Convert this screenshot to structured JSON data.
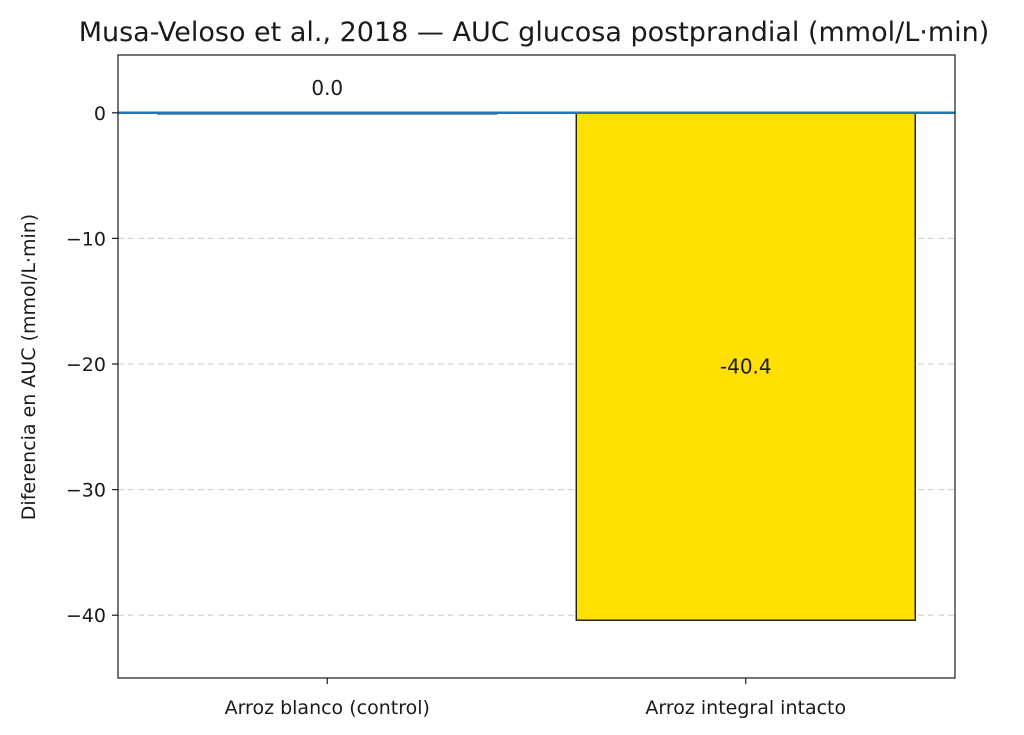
{
  "chart_data": {
    "type": "bar",
    "title": "Musa-Veloso et al., 2018 — AUC glucosa postprandial (mmol/L·min)",
    "xlabel": "",
    "ylabel": "Diferencia en AUC (mmol/L·min)",
    "categories": [
      "Arroz blanco (control)",
      "Arroz integral intacto"
    ],
    "values": [
      0.0,
      -40.4
    ],
    "data_labels": [
      "0.0",
      "-40.4"
    ],
    "bar_colors": [
      "#ffffff",
      "#ffe000"
    ],
    "bar_edge_color": "#1a1a1a",
    "baseline_color": "#1f77b4",
    "ylim": [
      -45,
      4.6
    ],
    "yticks": [
      0,
      -10,
      -20,
      -30,
      -40
    ],
    "ytick_labels": [
      "0",
      "−10",
      "−20",
      "−30",
      "−40"
    ],
    "grid": "y-dashed",
    "legend": "none"
  }
}
